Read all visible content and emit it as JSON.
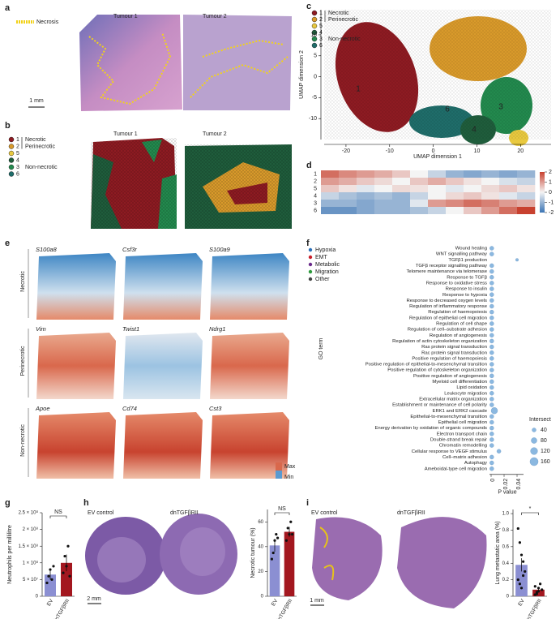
{
  "panel_labels": [
    "a",
    "b",
    "c",
    "d",
    "e",
    "f",
    "g",
    "h",
    "i"
  ],
  "a": {
    "legend": "Necrosis",
    "titles": [
      "Tumour 1",
      "Tumour 2"
    ],
    "scale": "1 mm"
  },
  "clusters": {
    "ids": [
      "1",
      "2",
      "5",
      "4",
      "3",
      "6"
    ],
    "colors": [
      "#8e1b22",
      "#d99a2b",
      "#e9c93f",
      "#1f5d3c",
      "#238a4e",
      "#1f6d6a"
    ],
    "groups": [
      "Necrotic",
      "Perinecrotic",
      "Non-necrotic"
    ]
  },
  "b": {
    "titles": [
      "Tumour 1",
      "Tumour 2"
    ]
  },
  "c": {
    "type": "scatter",
    "xlabel": "UMAP dimension 1",
    "ylabel": "UMAP dimension 2",
    "xlim": [
      -25,
      27
    ],
    "ylim": [
      -15,
      16
    ],
    "xticks": [
      -20,
      -10,
      0,
      10,
      20
    ],
    "yticks": [
      10,
      5,
      0,
      -5,
      -10
    ]
  },
  "d": {
    "type": "heatmap",
    "rows": [
      "1",
      "2",
      "5",
      "4",
      "3",
      "6"
    ],
    "values": [
      [
        1.5,
        1.2,
        1,
        0.8,
        0.5,
        0,
        -0.5,
        -1,
        -1.2,
        -1,
        -1.2,
        -1
      ],
      [
        1,
        0.8,
        0.5,
        0.3,
        0,
        0.5,
        0.8,
        0.5,
        0.2,
        0,
        -0.3,
        -0.5
      ],
      [
        0.5,
        0.2,
        -0.2,
        0,
        0.3,
        0.2,
        0,
        -0.2,
        0,
        0.3,
        0.5,
        0.2
      ],
      [
        -0.5,
        -0.8,
        -1,
        -0.8,
        -1,
        -0.5,
        0,
        0.3,
        0.5,
        0.2,
        -0.2,
        -0.5
      ],
      [
        -1,
        -1,
        -1.2,
        -1,
        -1,
        -0.2,
        1,
        1.2,
        1.5,
        1.3,
        1,
        0.8
      ],
      [
        -1.5,
        -1.5,
        -1.2,
        -1,
        -1,
        -0.8,
        -0.5,
        0,
        0.5,
        1,
        1.5,
        2
      ]
    ],
    "clim": [
      -2,
      2
    ],
    "cticks": [
      2,
      1,
      0,
      -1,
      -2
    ]
  },
  "e": {
    "rows": [
      "Necrotic",
      "Perinecrotic",
      "Non-necrotic"
    ],
    "genes": [
      [
        "S100a8",
        "Csf3r",
        "S100a9"
      ],
      [
        "Vim",
        "Twist1",
        "Ndrg1"
      ],
      [
        "Apoe",
        "Cd74",
        "Cst3"
      ]
    ],
    "scale": [
      "Max",
      "Min"
    ]
  },
  "f": {
    "type": "dot",
    "legend": [
      "Hypoxia",
      "EMT",
      "Metabolic",
      "Migration",
      "Other"
    ],
    "legend_colors": [
      "#2a6fb8",
      "#c81e2a",
      "#6a2a8a",
      "#2c9a3c",
      "#444444"
    ],
    "ylabel": "GO term",
    "xlabel": "P value",
    "xlim": [
      0,
      0.05
    ],
    "xticks": [
      0,
      0.02,
      0.04
    ],
    "size_title": "Intersect",
    "intersect_legend": [
      40,
      80,
      120,
      160
    ],
    "terms": [
      {
        "label": "Wound healing",
        "group": "Other"
      },
      {
        "label": "WNT signalling pathway",
        "group": "Other"
      },
      {
        "label": "TGFβ1 production",
        "group": "EMT"
      },
      {
        "label": "TGFβ receptor signalling pathway",
        "group": "EMT"
      },
      {
        "label": "Telomere maintenance via telomerase",
        "group": "Other"
      },
      {
        "label": "Response to TGFβ",
        "group": "EMT"
      },
      {
        "label": "Response to oxidative stress",
        "group": "Other"
      },
      {
        "label": "Response to insulin",
        "group": "Metabolic"
      },
      {
        "label": "Response to hypoxia",
        "group": "Hypoxia"
      },
      {
        "label": "Response to decreased oxygen levels",
        "group": "Hypoxia"
      },
      {
        "label": "Regulation of inflammatory response",
        "group": "Other"
      },
      {
        "label": "Regulation of haemopoiesis",
        "group": "Other"
      },
      {
        "label": "Regulation of epithelial cell migration",
        "group": "Migration"
      },
      {
        "label": "Regulation of cell shape",
        "group": "Migration"
      },
      {
        "label": "Regulation of cell–substrate adhesion",
        "group": "Migration"
      },
      {
        "label": "Regulation of angiogenesis",
        "group": "Other"
      },
      {
        "label": "Regulation of actin cytoskeleton organization",
        "group": "Migration"
      },
      {
        "label": "Ras protein signal transduction",
        "group": "Other"
      },
      {
        "label": "Rac protein signal transduction",
        "group": "Migration"
      },
      {
        "label": "Positive regulation of haemopoiesis",
        "group": "Other"
      },
      {
        "label": "Positive regulation of epithelial-to-mesenchymal transition",
        "group": "EMT"
      },
      {
        "label": "Positive regulation of cytoskeleton organization",
        "group": "Migration"
      },
      {
        "label": "Positive regulation of angiogenesis",
        "group": "Other"
      },
      {
        "label": "Myeloid cell differentiation",
        "group": "Other"
      },
      {
        "label": "Lipid oxidation",
        "group": "Metabolic"
      },
      {
        "label": "Leukocyte migration",
        "group": "Migration"
      },
      {
        "label": "Extracellular matrix organization",
        "group": "Other"
      },
      {
        "label": "Establishment or maintenance of cell polarity",
        "group": "Migration"
      },
      {
        "label": "ERK1 and ERK2 cascade",
        "group": "Other"
      },
      {
        "label": "Epithelial-to-mesenchymal transition",
        "group": "EMT"
      },
      {
        "label": "Epithelial cell migration",
        "group": "Migration"
      },
      {
        "label": "Energy derivation by oxidation of organic compounds",
        "group": "Metabolic"
      },
      {
        "label": "Electron transport chain",
        "group": "Metabolic"
      },
      {
        "label": "Double-strand break repair",
        "group": "Other"
      },
      {
        "label": "Chromatin remodelling",
        "group": "Other"
      },
      {
        "label": "Cellular response to VEGF stimulus",
        "group": "Other"
      },
      {
        "label": "Cell–matrix adhesion",
        "group": "Migration"
      },
      {
        "label": "Autophagy",
        "group": "Migration"
      },
      {
        "label": "Ameboidal-type cell migration",
        "group": "Migration"
      }
    ],
    "p_values": [
      0.001,
      0.001,
      0.04,
      0.001,
      0.001,
      0.001,
      0.001,
      0.001,
      0.001,
      0.001,
      0.001,
      0.001,
      0.001,
      0.001,
      0.001,
      0.001,
      0.001,
      0.001,
      0.001,
      0.001,
      0.001,
      0.001,
      0.001,
      0.001,
      0.001,
      0.001,
      0.001,
      0.001,
      0.005,
      0.001,
      0.001,
      0.001,
      0.001,
      0.001,
      0.001,
      0.012,
      0.001,
      0.001,
      0.001
    ],
    "sizes": [
      40,
      40,
      20,
      40,
      40,
      40,
      40,
      40,
      40,
      40,
      40,
      40,
      40,
      40,
      40,
      40,
      40,
      40,
      40,
      40,
      40,
      40,
      40,
      40,
      40,
      40,
      40,
      40,
      100,
      40,
      40,
      40,
      40,
      40,
      40,
      40,
      40,
      40,
      40
    ]
  },
  "g": {
    "type": "bar",
    "ylabel": "Neutrophils per millilitre",
    "categories": [
      "EV",
      "dnTGFβRII"
    ],
    "colors": [
      "#8b8fd2",
      "#a3171f"
    ],
    "ylim": [
      0,
      250000000
    ],
    "yticks": [
      0,
      {
        "value": 50000000,
        "label": "5 × 10⁷"
      },
      {
        "value": 100000000,
        "label": "1 × 10⁸"
      },
      {
        "value": 150000000,
        "label": "1.5 × 10⁸"
      },
      {
        "value": 200000000,
        "label": "2 × 10⁸"
      },
      {
        "value": 250000000,
        "label": "2.5 × 10⁸"
      }
    ],
    "values": [
      65000000,
      100000000
    ],
    "errors": [
      15000000,
      25000000
    ],
    "points": [
      [
        40000000,
        60000000,
        80000000,
        50000000,
        90000000
      ],
      [
        70000000,
        120000000,
        90000000,
        150000000,
        60000000
      ]
    ],
    "annotation": "NS"
  },
  "h": {
    "type": "bar",
    "images": [
      "EV control",
      "dnTGFβRII"
    ],
    "scale": "2 mm",
    "ylabel": "Necrotic tumour (%)",
    "categories": [
      "EV",
      "dnTGFβRII"
    ],
    "colors": [
      "#8b8fd2",
      "#a3171f"
    ],
    "ylim": [
      0,
      70
    ],
    "yticks": [
      0,
      20,
      40,
      60
    ],
    "values": [
      41,
      52
    ],
    "errors": [
      5,
      4
    ],
    "points": [
      [
        30,
        35,
        45,
        50,
        47
      ],
      [
        45,
        55,
        50,
        60,
        50
      ]
    ],
    "annotation": "NS"
  },
  "i": {
    "type": "bar",
    "images": [
      "EV control",
      "dnTGFβRII"
    ],
    "scale": "1 mm",
    "ylabel": "Lung metastatic area (%)",
    "categories": [
      "EV",
      "dnTGFβRII"
    ],
    "colors": [
      "#8b8fd2",
      "#a3171f"
    ],
    "ylim": [
      0,
      1.05
    ],
    "yticks": [
      0,
      0.2,
      0.4,
      0.6,
      0.8,
      {
        "value": 1,
        "label": "1.0"
      }
    ],
    "values": [
      0.38,
      0.08
    ],
    "errors": [
      0.08,
      0.02
    ],
    "points": [
      [
        0.82,
        0.65,
        0.5,
        0.42,
        0.3,
        0.2,
        0.15,
        0.1,
        0.25
      ],
      [
        0.02,
        0.05,
        0.1,
        0.15,
        0.08,
        0.12,
        0.03,
        0.06
      ]
    ],
    "annotation": "*"
  }
}
